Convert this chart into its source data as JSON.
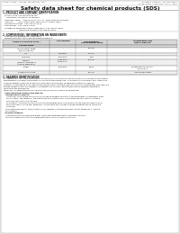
{
  "bg_color": "#f0ede8",
  "page_bg": "#ffffff",
  "header_left": "Product Name: Lithium Ion Battery Cell",
  "header_right_line1": "Document Control: SDS-049-00010",
  "header_right_line2": "Established / Revision: Dec.7.2010",
  "title": "Safety data sheet for chemical products (SDS)",
  "section1_title": "1. PRODUCT AND COMPANY IDENTIFICATION",
  "section1_items": [
    "· Product name: Lithium Ion Battery Cell",
    "· Product code: Cylindrical-type cell",
    "     04166560, 04166560, 04166560A",
    "· Company name:    Sanyo Electric Co., Ltd., Mobile Energy Company",
    "· Address:         2001, Kannondai, Sumoto-City, Hyogo, Japan",
    "· Telephone number:  +81-799-26-4111",
    "· Fax number:  +81-799-26-4120",
    "· Emergency telephone number (Weekday): +81-799-26-3062",
    "                           (Night and holiday): +81-799-26-4101"
  ],
  "section2_title": "2. COMPOSITION / INFORMATION ON INGREDIENTS",
  "section2_sub": "· Substance or preparation: Preparation",
  "section2_sub2": "· Information about the chemical nature of product:",
  "table_headers": [
    "Common chemical name /",
    "CAS number",
    "Concentration /\nConcentration range",
    "Classification and\nhazard labeling"
  ],
  "table_col2": "Several name",
  "table_rows": [
    [
      "Lithium cobalt oxide\n(LiMn-Co-PB2O4)",
      "-",
      "30-40%",
      "-"
    ],
    [
      "Iron",
      "7439-89-6",
      "15-25%",
      "-"
    ],
    [
      "Aluminum",
      "7429-90-5",
      "2-5%",
      "-"
    ],
    [
      "Graphite\n(Mixed or graphite-1)\n(A-99 or graphite-1)",
      "77954-45-5\n77964-44-0",
      "10-20%",
      "-"
    ],
    [
      "Copper",
      "7440-50-8",
      "5-15%",
      "Sensitization of the skin\ngroup No.2"
    ],
    [
      "Organic electrolyte",
      "-",
      "10-20%",
      "Inflammable liquid"
    ]
  ],
  "section3_title": "3. HAZARDS IDENTIFICATION",
  "section3_lines": [
    "For the battery cell, chemical materials are stored in a hermetically sealed metal case, designed to withstand",
    "temperatures and pressure-stresses occurring during normal use. As a result, during normal use, there is no",
    "physical danger of ignition or explosion and there is no danger of hazardous materials leakage.",
    "However, if exposed to a fire, added mechanical shocks, decomposed, arises electric electrolytes may leak use.",
    "The gas release cannot be operated. The battery cell case will be breached at fire-extreme, hazardous",
    "materials may be released.",
    "Moreover, if heated strongly by the surrounding fire, toxic gas may be emitted."
  ],
  "bullet1": "· Most important hazard and effects:",
  "human_label": "Human health effects:",
  "human_lines": [
    "Inhalation: The release of the electrolyte has an anaesthesia action and stimulates in respiratory tract.",
    "Skin contact: The release of the electrolyte stimulates a skin. The electrolyte skin contact causes a",
    "sore and stimulation on the skin.",
    "Eye contact: The release of the electrolyte stimulates eyes. The electrolyte eye contact causes a sore",
    "and stimulation on the eye. Especially, a substance that causes a strong inflammation of the eye is",
    "contained."
  ],
  "env_lines": [
    "Environmental effects: Since a battery cell remains in the environment, do not throw out it into the",
    "environment."
  ],
  "bullet2": "· Specific hazards:",
  "specific_lines": [
    "If the electrolyte contacts with water, it will generate detrimental hydrogen fluoride.",
    "Since the used electrolyte is inflammable liquid, do not bring close to fire."
  ]
}
